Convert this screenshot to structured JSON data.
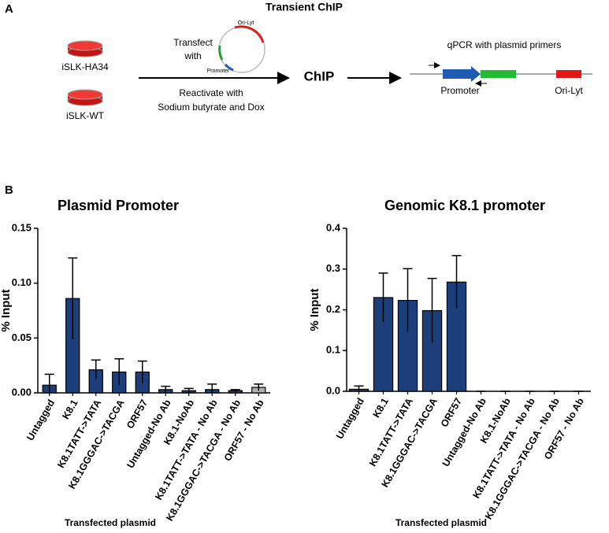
{
  "panel_a": {
    "label": "A",
    "title": "Transient ChIP",
    "cell_line_1": "iSLK-HA34",
    "cell_line_2": "iSLK-WT",
    "step_1_line_1": "Transfect",
    "step_1_line_2": "with",
    "plasmid_ori": "Ori-Lyt",
    "plasmid_promoter": "Promoter",
    "step_2_line_1": "Reactivate with",
    "step_2_line_2": "Sodium butyrate and Dox",
    "chip": "ChIP",
    "qpcr": "qPCR with plasmid primers",
    "map_promoter": "Promoter",
    "map_ori": "Ori-Lyt"
  },
  "panel_b_label": "B",
  "chart_data": [
    {
      "type": "bar",
      "title": "Plasmid Promoter",
      "ylabel": "% Input",
      "xlabel": "Transfected plasmid",
      "categories": [
        "Untagged",
        "K8.1",
        "K8.1TATT->TATA",
        "K8.1GGGAC->TACGA",
        "ORF57",
        "Untagged-No Ab",
        "K8.1-NoAb",
        "K8.1TATT->TATA - No Ab",
        "K8.1GGGAC->TACGA - No Ab",
        "ORF57 - No Ab"
      ],
      "values": [
        0.007,
        0.086,
        0.021,
        0.019,
        0.019,
        0.003,
        0.002,
        0.003,
        0.002,
        0.005
      ],
      "errors": [
        0.01,
        0.037,
        0.009,
        0.012,
        0.01,
        0.003,
        0.002,
        0.005,
        0.001,
        0.003
      ],
      "colors": [
        "#1c3f7c",
        "#1c3f7c",
        "#1c3f7c",
        "#1c3f7c",
        "#1c3f7c",
        "#1c3f7c",
        "#1c3f7c",
        "#1c3f7c",
        "#1c3f7c",
        "#b0b0b0"
      ],
      "ylim": [
        0,
        0.15
      ],
      "yticks": [
        {
          "value": 0,
          "label": "0.00"
        },
        0.05,
        {
          "value": 0.1,
          "label": "0.10"
        },
        0.15
      ]
    },
    {
      "type": "bar",
      "title": "Genomic K8.1 promoter",
      "ylabel": "% Input",
      "xlabel": "Transfected plasmid",
      "categories": [
        "Untagged",
        "K8.1",
        "K8.1TATT->TATA",
        "K8.1GGGAC->TACGA",
        "ORF57",
        "Untagged-No Ab",
        "K8.1-NoAb",
        "K8.1TATT->TATA - No Ab",
        "K8.1GGGAC->TACGA - No Ab",
        "ORF57 - No Ab"
      ],
      "values": [
        0.005,
        0.23,
        0.223,
        0.198,
        0.268,
        0,
        0,
        0,
        0,
        0
      ],
      "errors": [
        0.008,
        0.06,
        0.078,
        0.079,
        0.065,
        0,
        0,
        0,
        0,
        0
      ],
      "colors": [
        "#1c3f7c",
        "#1c3f7c",
        "#1c3f7c",
        "#1c3f7c",
        "#1c3f7c",
        "#1c3f7c",
        "#1c3f7c",
        "#1c3f7c",
        "#1c3f7c",
        "#1c3f7c"
      ],
      "ylim": [
        0,
        0.4
      ],
      "yticks": [
        {
          "value": 0,
          "label": "0.0"
        },
        0.1,
        0.2,
        0.3,
        0.4
      ]
    }
  ]
}
